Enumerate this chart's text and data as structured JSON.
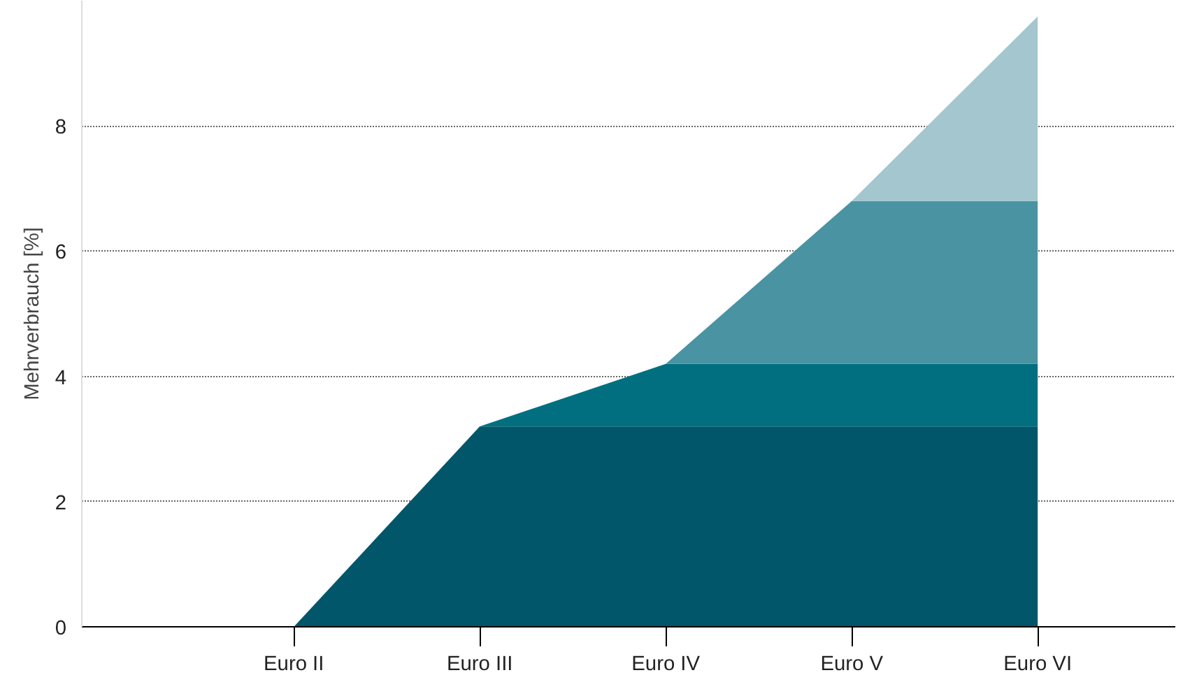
{
  "chart_data": {
    "type": "area",
    "stacked": true,
    "ylabel": "Mehrverbrauch [%]",
    "categories": [
      "Euro II",
      "Euro III",
      "Euro IV",
      "Euro V",
      "Euro VI"
    ],
    "series": [
      {
        "color": "#02566a",
        "values": [
          0,
          3.2,
          3.2,
          3.2,
          3.2
        ]
      },
      {
        "color": "#026f80",
        "values": [
          0,
          0,
          1.0,
          1.0,
          1.0
        ]
      },
      {
        "color": "#4a93a2",
        "values": [
          0,
          0,
          0,
          2.6,
          2.6
        ]
      },
      {
        "color": "#a3c6cf",
        "values": [
          0,
          0,
          0,
          0,
          2.95
        ]
      }
    ],
    "ylim": [
      0,
      10
    ],
    "yticks": [
      0,
      2,
      4,
      6,
      8
    ],
    "grid": "y"
  }
}
